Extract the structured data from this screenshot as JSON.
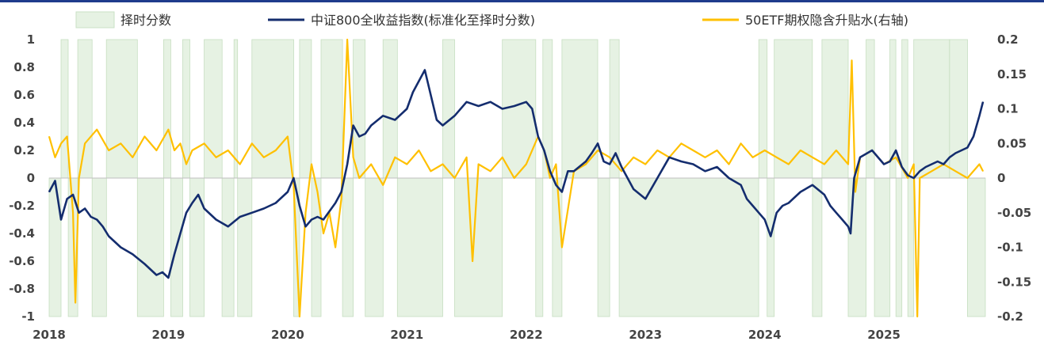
{
  "chart_data": {
    "type": "line",
    "title": "",
    "legend": [
      {
        "name": "择时分数",
        "kind": "area",
        "color": "#e6f2e3"
      },
      {
        "name": "中证800全收益指数(标准化至择时分数)",
        "kind": "line",
        "color": "#142d6e"
      },
      {
        "name": "50ETF期权隐含升贴水(右轴)",
        "kind": "line",
        "color": "#ffc000"
      }
    ],
    "legend_position": "top",
    "x_ticks": [
      "2018",
      "2019",
      "2020",
      "2021",
      "2022",
      "2023",
      "2024",
      "2025"
    ],
    "x_range": [
      2018.0,
      2025.85
    ],
    "y_left": {
      "range": [
        -1,
        1
      ],
      "ticks": [
        "1",
        "0.8",
        "0.6",
        "0.4",
        "0.2",
        "0",
        "-0.2",
        "-0.4",
        "-0.6",
        "-0.8",
        "-1"
      ]
    },
    "y_right": {
      "range": [
        -0.2,
        0.2
      ],
      "ticks": [
        "0.2",
        "0.15",
        "0.1",
        "0.05",
        "0",
        "-0.05",
        "-0.1",
        "-0.15",
        "-0.2"
      ]
    },
    "timing_score": {
      "name": "择时分数",
      "segments": [
        [
          2018.0,
          2018.1,
          -1
        ],
        [
          2018.1,
          2018.16,
          1
        ],
        [
          2018.16,
          2018.24,
          -1
        ],
        [
          2018.24,
          2018.36,
          1
        ],
        [
          2018.36,
          2018.48,
          -1
        ],
        [
          2018.48,
          2018.74,
          1
        ],
        [
          2018.74,
          2018.96,
          -1
        ],
        [
          2018.96,
          2019.02,
          1
        ],
        [
          2019.02,
          2019.12,
          -1
        ],
        [
          2019.12,
          2019.18,
          1
        ],
        [
          2019.18,
          2019.3,
          -1
        ],
        [
          2019.3,
          2019.45,
          1
        ],
        [
          2019.45,
          2019.55,
          -1
        ],
        [
          2019.55,
          2019.58,
          1
        ],
        [
          2019.58,
          2019.7,
          -1
        ],
        [
          2019.7,
          2020.05,
          1
        ],
        [
          2020.05,
          2020.1,
          -1
        ],
        [
          2020.1,
          2020.2,
          1
        ],
        [
          2020.2,
          2020.28,
          -1
        ],
        [
          2020.28,
          2020.46,
          1
        ],
        [
          2020.46,
          2020.55,
          -1
        ],
        [
          2020.55,
          2020.65,
          1
        ],
        [
          2020.65,
          2020.8,
          -1
        ],
        [
          2020.8,
          2020.92,
          1
        ],
        [
          2020.92,
          2021.3,
          -1
        ],
        [
          2021.3,
          2021.4,
          1
        ],
        [
          2021.4,
          2021.8,
          -1
        ],
        [
          2021.8,
          2022.08,
          1
        ],
        [
          2022.08,
          2022.14,
          -1
        ],
        [
          2022.14,
          2022.22,
          1
        ],
        [
          2022.22,
          2022.3,
          -1
        ],
        [
          2022.3,
          2022.6,
          1
        ],
        [
          2022.6,
          2022.7,
          -1
        ],
        [
          2022.7,
          2022.78,
          1
        ],
        [
          2022.78,
          2023.95,
          -1
        ],
        [
          2023.95,
          2024.02,
          1
        ],
        [
          2024.02,
          2024.08,
          -1
        ],
        [
          2024.08,
          2024.4,
          1
        ],
        [
          2024.4,
          2024.48,
          -1
        ],
        [
          2024.48,
          2024.7,
          1
        ],
        [
          2024.7,
          2024.85,
          -1
        ],
        [
          2024.85,
          2024.92,
          1
        ],
        [
          2024.92,
          2025.05,
          -1
        ],
        [
          2025.05,
          2025.1,
          1
        ],
        [
          2025.1,
          2025.15,
          -1
        ],
        [
          2025.15,
          2025.2,
          1
        ],
        [
          2025.2,
          2025.25,
          -1
        ],
        [
          2025.25,
          2025.55,
          1
        ],
        [
          2025.55,
          2025.7,
          1
        ],
        [
          2025.7,
          2025.85,
          -1
        ]
      ]
    },
    "csi800": {
      "name": "中证800全收益指数(标准化至择时分数)",
      "axis": "left",
      "x": [
        2018.0,
        2018.05,
        2018.1,
        2018.15,
        2018.2,
        2018.25,
        2018.3,
        2018.35,
        2018.4,
        2018.45,
        2018.5,
        2018.6,
        2018.7,
        2018.8,
        2018.9,
        2018.95,
        2019.0,
        2019.05,
        2019.1,
        2019.15,
        2019.2,
        2019.25,
        2019.3,
        2019.4,
        2019.5,
        2019.6,
        2019.7,
        2019.8,
        2019.9,
        2020.0,
        2020.05,
        2020.1,
        2020.15,
        2020.2,
        2020.25,
        2020.3,
        2020.4,
        2020.45,
        2020.5,
        2020.55,
        2020.6,
        2020.65,
        2020.7,
        2020.8,
        2020.9,
        2021.0,
        2021.05,
        2021.1,
        2021.15,
        2021.2,
        2021.25,
        2021.3,
        2021.4,
        2021.5,
        2021.6,
        2021.7,
        2021.8,
        2021.9,
        2022.0,
        2022.05,
        2022.1,
        2022.15,
        2022.2,
        2022.25,
        2022.3,
        2022.35,
        2022.4,
        2022.5,
        2022.55,
        2022.6,
        2022.65,
        2022.7,
        2022.75,
        2022.8,
        2022.9,
        2023.0,
        2023.1,
        2023.2,
        2023.3,
        2023.4,
        2023.5,
        2023.6,
        2023.7,
        2023.8,
        2023.85,
        2023.9,
        2023.95,
        2024.0,
        2024.05,
        2024.1,
        2024.15,
        2024.2,
        2024.3,
        2024.4,
        2024.5,
        2024.55,
        2024.6,
        2024.65,
        2024.7,
        2024.72,
        2024.75,
        2024.8,
        2024.9,
        2025.0,
        2025.05,
        2025.1,
        2025.15,
        2025.2,
        2025.25,
        2025.3,
        2025.35,
        2025.4,
        2025.45,
        2025.5,
        2025.55,
        2025.6,
        2025.65,
        2025.7,
        2025.75,
        2025.8,
        2025.83
      ],
      "values": [
        -0.1,
        -0.02,
        -0.3,
        -0.15,
        -0.12,
        -0.25,
        -0.22,
        -0.28,
        -0.3,
        -0.35,
        -0.42,
        -0.5,
        -0.55,
        -0.62,
        -0.7,
        -0.68,
        -0.72,
        -0.55,
        -0.4,
        -0.25,
        -0.18,
        -0.12,
        -0.22,
        -0.3,
        -0.35,
        -0.28,
        -0.25,
        -0.22,
        -0.18,
        -0.1,
        0.0,
        -0.2,
        -0.35,
        -0.3,
        -0.28,
        -0.3,
        -0.18,
        -0.1,
        0.1,
        0.38,
        0.3,
        0.32,
        0.38,
        0.45,
        0.42,
        0.5,
        0.62,
        0.7,
        0.78,
        0.6,
        0.42,
        0.38,
        0.45,
        0.55,
        0.52,
        0.55,
        0.5,
        0.52,
        0.55,
        0.5,
        0.3,
        0.2,
        0.05,
        -0.05,
        -0.1,
        0.05,
        0.05,
        0.12,
        0.18,
        0.25,
        0.12,
        0.1,
        0.18,
        0.08,
        -0.08,
        -0.15,
        0.0,
        0.15,
        0.12,
        0.1,
        0.05,
        0.08,
        0.0,
        -0.05,
        -0.15,
        -0.2,
        -0.25,
        -0.3,
        -0.42,
        -0.25,
        -0.2,
        -0.18,
        -0.1,
        -0.05,
        -0.12,
        -0.2,
        -0.25,
        -0.3,
        -0.35,
        -0.4,
        0.0,
        0.15,
        0.2,
        0.1,
        0.12,
        0.2,
        0.08,
        0.02,
        0.0,
        0.05,
        0.08,
        0.1,
        0.12,
        0.1,
        0.15,
        0.18,
        0.2,
        0.22,
        0.3,
        0.45,
        0.55
      ]
    },
    "etf50": {
      "name": "50ETF期权隐含升贴水(右轴)",
      "axis": "right",
      "x": [
        2018.0,
        2018.05,
        2018.1,
        2018.15,
        2018.2,
        2018.22,
        2018.25,
        2018.3,
        2018.4,
        2018.5,
        2018.6,
        2018.7,
        2018.8,
        2018.9,
        2019.0,
        2019.05,
        2019.1,
        2019.15,
        2019.2,
        2019.3,
        2019.4,
        2019.5,
        2019.6,
        2019.7,
        2019.8,
        2019.9,
        2020.0,
        2020.05,
        2020.1,
        2020.15,
        2020.2,
        2020.25,
        2020.3,
        2020.35,
        2020.4,
        2020.45,
        2020.5,
        2020.55,
        2020.6,
        2020.7,
        2020.8,
        2020.9,
        2021.0,
        2021.1,
        2021.2,
        2021.3,
        2021.4,
        2021.5,
        2021.55,
        2021.6,
        2021.7,
        2021.8,
        2021.9,
        2022.0,
        2022.1,
        2022.15,
        2022.2,
        2022.25,
        2022.3,
        2022.4,
        2022.5,
        2022.6,
        2022.7,
        2022.8,
        2022.9,
        2023.0,
        2023.1,
        2023.2,
        2023.3,
        2023.4,
        2023.5,
        2023.6,
        2023.7,
        2023.8,
        2023.9,
        2024.0,
        2024.1,
        2024.2,
        2024.3,
        2024.4,
        2024.5,
        2024.6,
        2024.7,
        2024.73,
        2024.76,
        2024.8,
        2024.9,
        2025.0,
        2025.1,
        2025.2,
        2025.25,
        2025.28,
        2025.3,
        2025.4,
        2025.5,
        2025.6,
        2025.7,
        2025.8,
        2025.83
      ],
      "values": [
        0.06,
        0.03,
        0.05,
        0.06,
        -0.05,
        -0.18,
        0.0,
        0.05,
        0.07,
        0.04,
        0.05,
        0.03,
        0.06,
        0.04,
        0.07,
        0.04,
        0.05,
        0.02,
        0.04,
        0.05,
        0.03,
        0.04,
        0.02,
        0.05,
        0.03,
        0.04,
        0.06,
        -0.01,
        -0.2,
        -0.05,
        0.02,
        -0.02,
        -0.08,
        -0.05,
        -0.1,
        -0.03,
        0.2,
        0.03,
        0.0,
        0.02,
        -0.01,
        0.03,
        0.02,
        0.04,
        0.01,
        0.02,
        0.0,
        0.03,
        -0.12,
        0.02,
        0.01,
        0.03,
        0.0,
        0.02,
        0.06,
        0.04,
        0.0,
        0.02,
        -0.1,
        0.01,
        0.02,
        0.04,
        0.03,
        0.01,
        0.03,
        0.02,
        0.04,
        0.03,
        0.05,
        0.04,
        0.03,
        0.04,
        0.02,
        0.05,
        0.03,
        0.04,
        0.03,
        0.02,
        0.04,
        0.03,
        0.02,
        0.04,
        0.02,
        0.17,
        -0.02,
        0.03,
        0.04,
        0.02,
        0.03,
        0.0,
        0.02,
        -0.2,
        0.0,
        0.01,
        0.02,
        0.01,
        0.0,
        0.02,
        0.01
      ]
    }
  }
}
